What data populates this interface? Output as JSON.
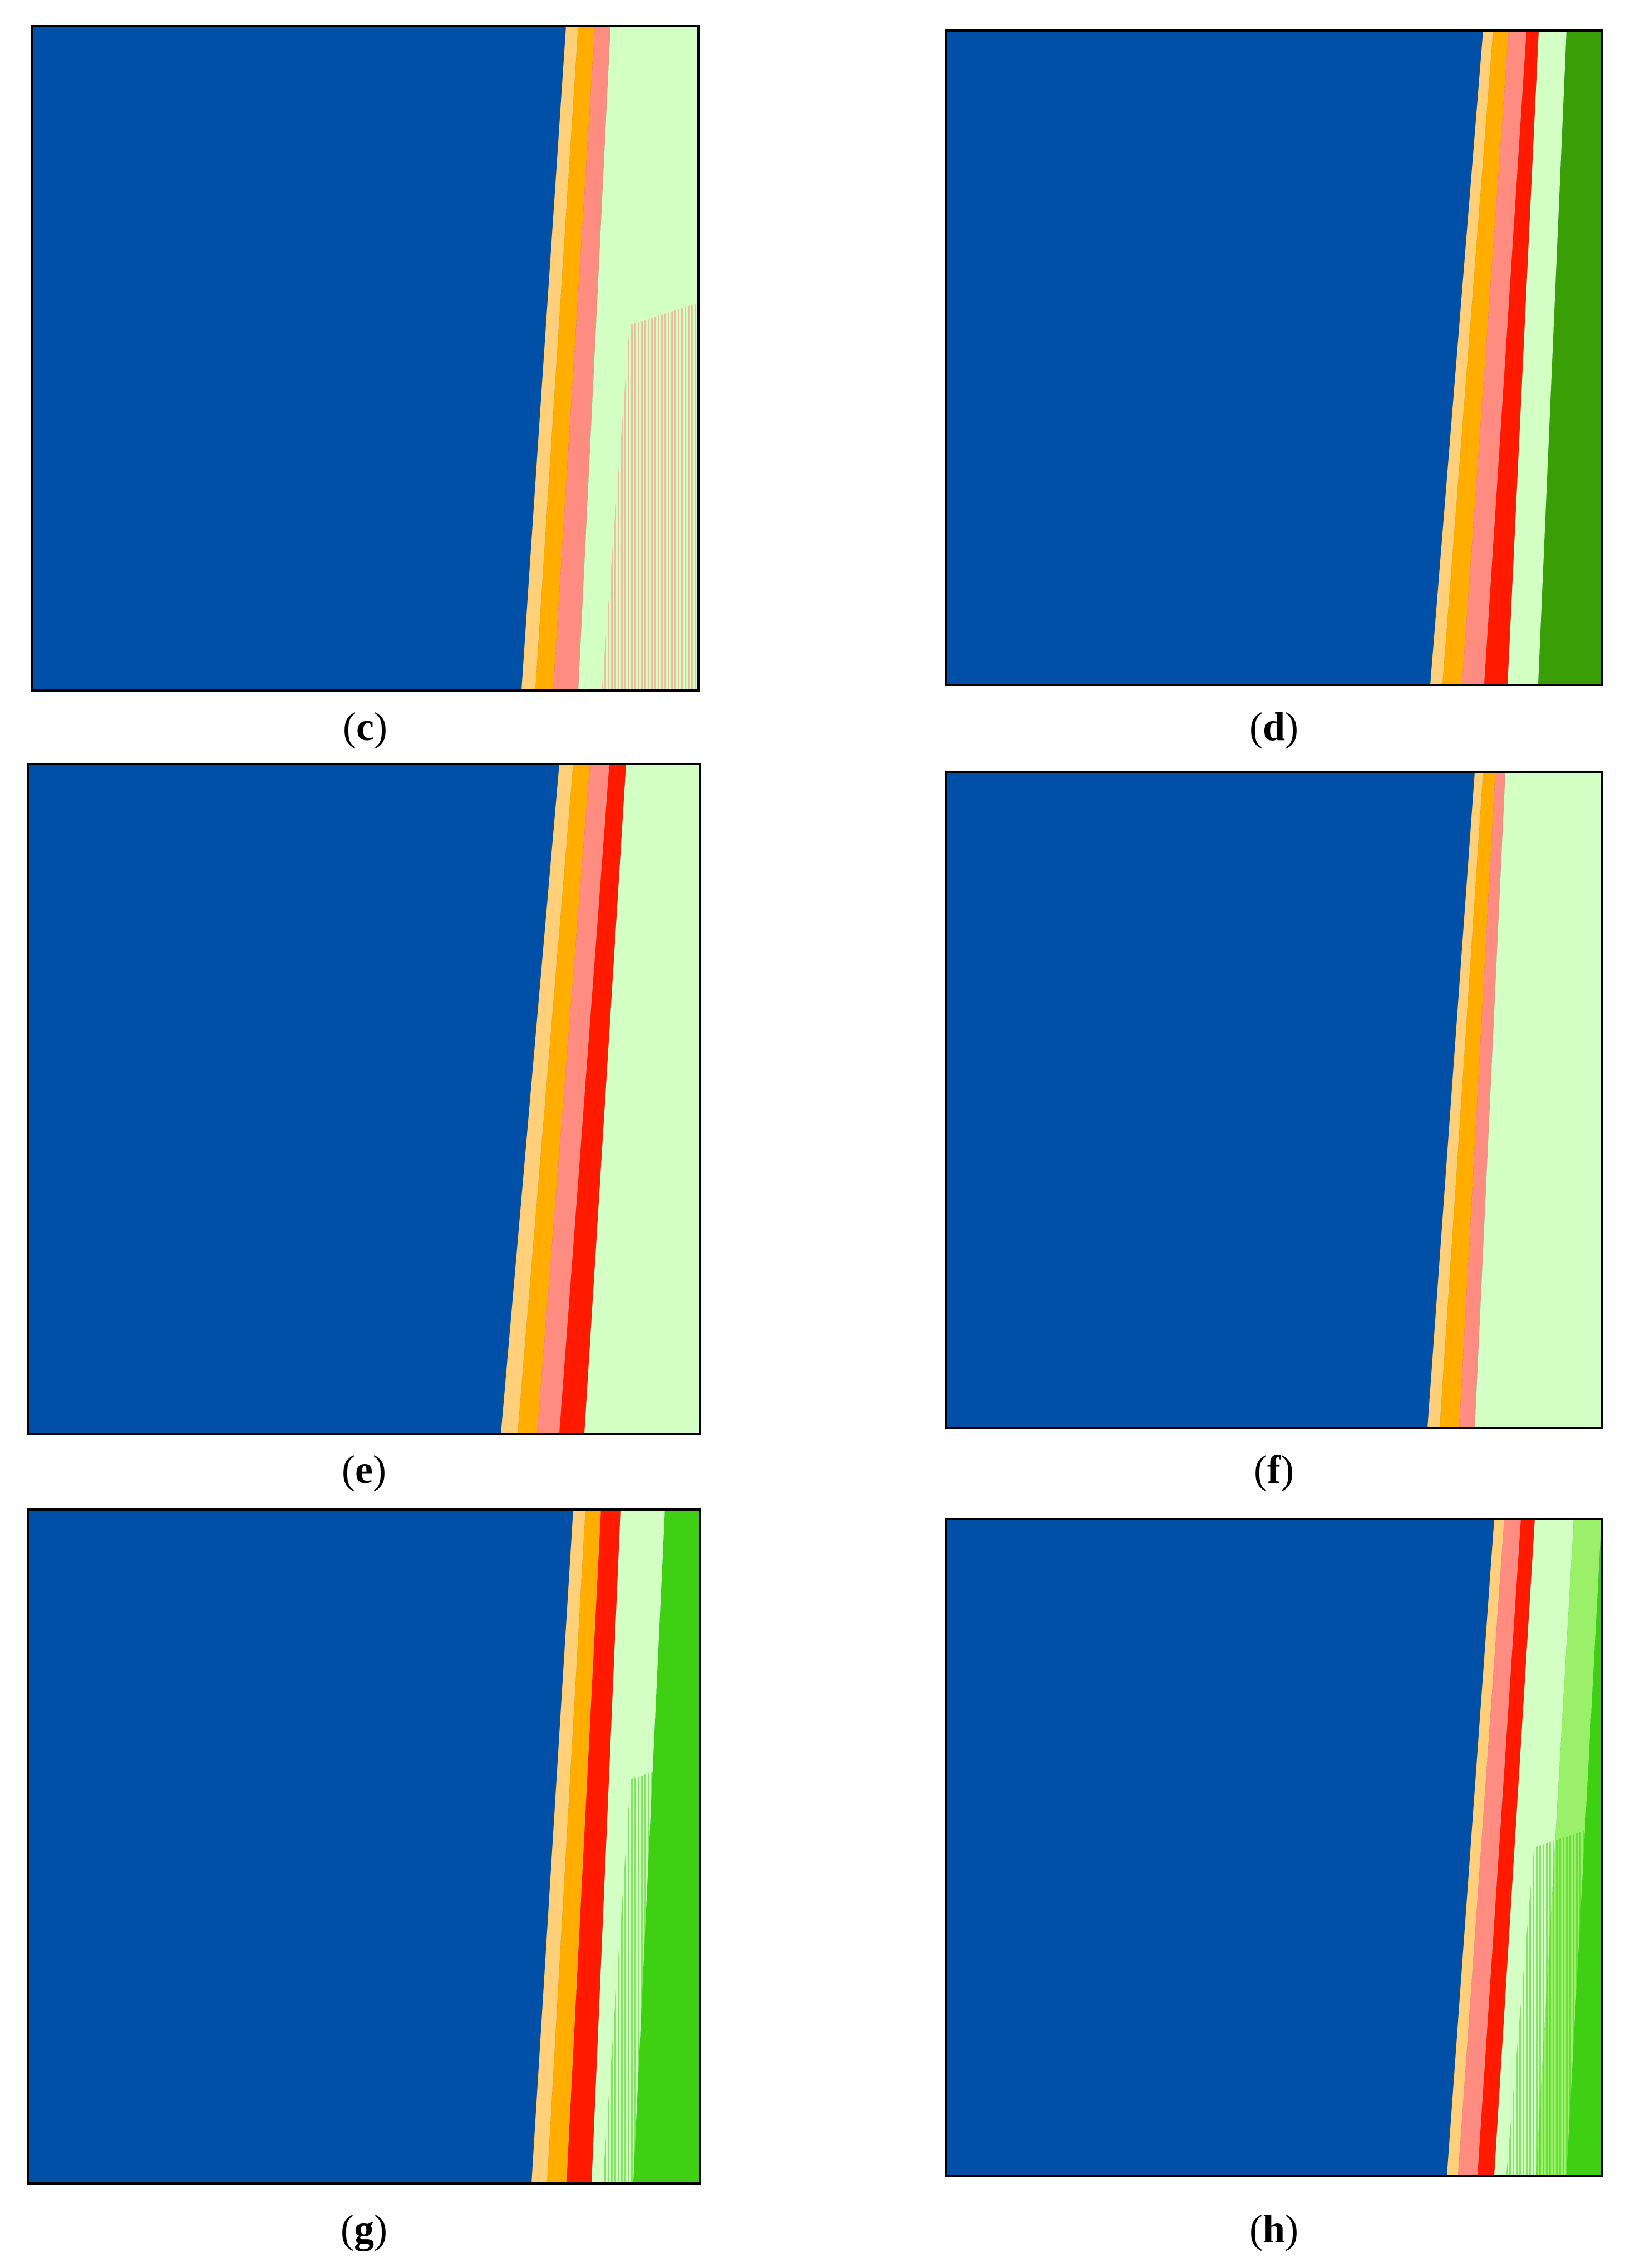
{
  "colors": {
    "background": "#0050a8",
    "light_orange": "#ffcf7a",
    "orange": "#ffae00",
    "salmon": "#ff8c80",
    "red": "#ff1a00",
    "pale_green": "#d4ffc4",
    "light_green": "#9bf06a",
    "bright_green": "#3fd014",
    "dark_green": "#3a9e06",
    "frame": "#000000"
  },
  "panels": [
    {
      "id": "c",
      "caption_open": "(",
      "caption_letter": "c",
      "caption_close": ")",
      "bands": [
        "light_orange",
        "orange",
        "salmon",
        "pale_green"
      ],
      "hatch": "salmon",
      "hatch_level": 0.55
    },
    {
      "id": "d",
      "caption_open": "(",
      "caption_letter": "d",
      "caption_close": ")",
      "bands": [
        "light_orange",
        "orange",
        "salmon",
        "red",
        "pale_green",
        "dark_green"
      ],
      "hatch": "",
      "hatch_level": 0
    },
    {
      "id": "e",
      "caption_open": "(",
      "caption_letter": "e",
      "caption_close": ")",
      "bands": [
        "light_orange",
        "orange",
        "salmon",
        "red",
        "pale_green"
      ],
      "hatch": "",
      "hatch_level": 0
    },
    {
      "id": "f",
      "caption_open": "(",
      "caption_letter": "f",
      "caption_close": ")",
      "bands": [
        "light_orange",
        "orange",
        "salmon",
        "pale_green"
      ],
      "hatch": "",
      "hatch_level": 0
    },
    {
      "id": "g",
      "caption_open": "(",
      "caption_letter": "g",
      "caption_close": ")",
      "bands": [
        "light_orange",
        "orange",
        "red",
        "pale_green",
        "bright_green"
      ],
      "hatch": "bright_green",
      "hatch_level": 0.6
    },
    {
      "id": "h",
      "caption_open": "(",
      "caption_letter": "h",
      "caption_close": ")",
      "bands": [
        "light_orange",
        "salmon",
        "red",
        "pale_green",
        "light_green",
        "bright_green"
      ],
      "hatch": "bright_green",
      "hatch_level": 0.5
    }
  ]
}
